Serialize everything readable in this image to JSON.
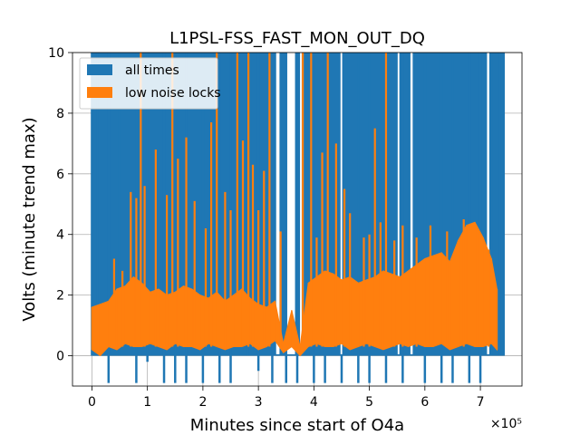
{
  "chart_data": {
    "type": "area",
    "title": "L1PSL-FSS_FAST_MON_OUT_DQ",
    "xlabel": "Minutes since start of O4a",
    "ylabel": "Volts (minute trend max)",
    "x_offset_text": "×10⁵",
    "x_scale": 100000,
    "xlim": [
      -35000,
      775000
    ],
    "ylim": [
      -1,
      10
    ],
    "xticks": [
      0,
      100000,
      200000,
      300000,
      400000,
      500000,
      600000,
      700000
    ],
    "xtick_labels": [
      "0",
      "1",
      "2",
      "3",
      "4",
      "5",
      "6",
      "7"
    ],
    "yticks": [
      0,
      2,
      4,
      6,
      8,
      10
    ],
    "ytick_labels": [
      "0",
      "2",
      "4",
      "6",
      "8",
      "10"
    ],
    "grid": true,
    "legend_position": "top-left",
    "series": [
      {
        "name": "all times",
        "color": "#1f77b4",
        "band": {
          "x_start": 0,
          "x_end": 742000,
          "low": 0,
          "high": 10
        },
        "x": [
          0,
          10000,
          30000,
          50000,
          80000,
          100000,
          130000,
          150000,
          170000,
          200000,
          230000,
          250000,
          280000,
          300000,
          325000,
          340000,
          350000,
          360000,
          370000,
          385000,
          400000,
          420000,
          450000,
          480000,
          500000,
          530000,
          560000,
          600000,
          630000,
          650000,
          680000,
          700000,
          720000,
          735000,
          742000
        ],
        "low": [
          0,
          0,
          -0.9,
          0,
          -0.9,
          -0.2,
          -0.9,
          -0.9,
          -0.9,
          -0.9,
          -0.9,
          -0.9,
          0,
          -0.5,
          -0.9,
          0,
          -0.9,
          0,
          -0.9,
          0,
          -0.9,
          -0.9,
          -0.9,
          -0.9,
          -0.9,
          -0.9,
          -0.9,
          -0.9,
          -0.9,
          -0.9,
          -0.9,
          -0.9,
          0,
          0,
          0
        ],
        "high": [
          10,
          10,
          10,
          10,
          10,
          10,
          10,
          10,
          10,
          10,
          10,
          10,
          10,
          10,
          10,
          10,
          10,
          10,
          10,
          10,
          10,
          10,
          10,
          10,
          10,
          10,
          10,
          10,
          10,
          10,
          10,
          10,
          10,
          10,
          10
        ],
        "gaps": [
          [
            332000,
            338000
          ],
          [
            352000,
            366000
          ],
          [
            375000,
            378000
          ],
          [
            448000,
            451000
          ],
          [
            551000,
            554000
          ],
          [
            574000,
            578000
          ],
          [
            712000,
            716000
          ]
        ]
      },
      {
        "name": "low noise locks",
        "color": "#ff7f0e",
        "x": [
          0,
          15000,
          30000,
          45000,
          60000,
          75000,
          90000,
          105000,
          120000,
          135000,
          150000,
          165000,
          180000,
          195000,
          210000,
          225000,
          240000,
          255000,
          270000,
          285000,
          300000,
          315000,
          330000,
          345000,
          360000,
          375000,
          390000,
          405000,
          420000,
          435000,
          450000,
          465000,
          480000,
          495000,
          510000,
          525000,
          540000,
          555000,
          570000,
          585000,
          600000,
          615000,
          630000,
          645000,
          660000,
          675000,
          690000,
          705000,
          720000,
          730000
        ],
        "base_low": [
          0.2,
          0.0,
          0.3,
          0.2,
          0.4,
          0.3,
          0.3,
          0.4,
          0.3,
          0.2,
          0.4,
          0.3,
          0.3,
          0.2,
          0.4,
          0.3,
          0.2,
          0.3,
          0.3,
          0.4,
          0.2,
          0.3,
          0.5,
          0.1,
          0.3,
          0.0,
          0.3,
          0.4,
          0.3,
          0.3,
          0.4,
          0.2,
          0.3,
          0.4,
          0.3,
          0.2,
          0.3,
          0.4,
          0.3,
          0.4,
          0.3,
          0.3,
          0.4,
          0.2,
          0.3,
          0.4,
          0.3,
          0.3,
          0.4,
          0.2
        ],
        "base_high": [
          1.6,
          1.7,
          1.8,
          2.2,
          2.3,
          2.6,
          2.4,
          2.1,
          2.2,
          2.0,
          2.1,
          2.3,
          2.2,
          2.0,
          1.9,
          2.1,
          1.8,
          2.0,
          2.2,
          1.9,
          1.7,
          1.6,
          1.8,
          0.4,
          1.5,
          0.3,
          2.4,
          2.6,
          2.8,
          2.7,
          2.5,
          2.6,
          2.4,
          2.5,
          2.6,
          2.8,
          2.7,
          2.6,
          2.8,
          3.0,
          3.2,
          3.3,
          3.4,
          3.1,
          3.8,
          4.3,
          4.4,
          3.9,
          3.2,
          2.2
        ],
        "spikes": [
          [
            40000,
            3.2
          ],
          [
            55000,
            2.8
          ],
          [
            70000,
            5.4
          ],
          [
            80000,
            5.2
          ],
          [
            88000,
            10
          ],
          [
            95000,
            5.6
          ],
          [
            115000,
            6.8
          ],
          [
            135000,
            5.3
          ],
          [
            145000,
            10
          ],
          [
            155000,
            6.5
          ],
          [
            170000,
            7.2
          ],
          [
            185000,
            5.1
          ],
          [
            205000,
            4.2
          ],
          [
            215000,
            7.7
          ],
          [
            225000,
            10
          ],
          [
            240000,
            5.4
          ],
          [
            250000,
            4.8
          ],
          [
            262000,
            10
          ],
          [
            272000,
            7.1
          ],
          [
            282000,
            10
          ],
          [
            290000,
            6.3
          ],
          [
            300000,
            4.8
          ],
          [
            310000,
            6.1
          ],
          [
            320000,
            10
          ],
          [
            340000,
            4.1
          ],
          [
            380000,
            10
          ],
          [
            395000,
            10
          ],
          [
            405000,
            3.9
          ],
          [
            415000,
            6.7
          ],
          [
            425000,
            10
          ],
          [
            440000,
            7.0
          ],
          [
            455000,
            5.5
          ],
          [
            465000,
            4.7
          ],
          [
            490000,
            3.9
          ],
          [
            500000,
            4.0
          ],
          [
            510000,
            7.5
          ],
          [
            520000,
            4.4
          ],
          [
            530000,
            10
          ],
          [
            545000,
            3.8
          ],
          [
            560000,
            4.3
          ],
          [
            585000,
            3.9
          ],
          [
            610000,
            4.3
          ],
          [
            640000,
            4.1
          ],
          [
            670000,
            4.5
          ],
          [
            695000,
            4.2
          ],
          [
            715000,
            3.5
          ]
        ]
      }
    ]
  }
}
